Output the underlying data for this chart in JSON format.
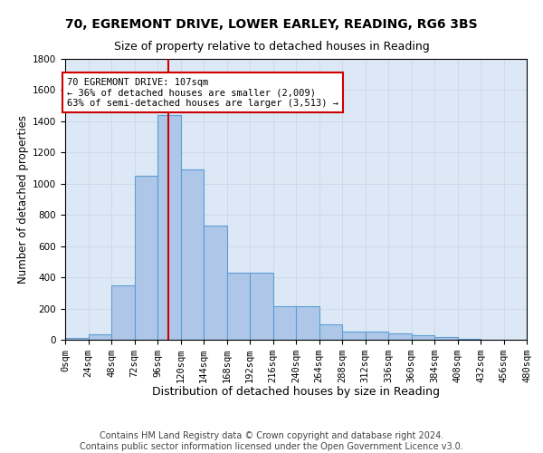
{
  "title1": "70, EGREMONT DRIVE, LOWER EARLEY, READING, RG6 3BS",
  "title2": "Size of property relative to detached houses in Reading",
  "xlabel": "Distribution of detached houses by size in Reading",
  "ylabel": "Number of detached properties",
  "footer1": "Contains HM Land Registry data © Crown copyright and database right 2024.",
  "footer2": "Contains public sector information licensed under the Open Government Licence v3.0.",
  "annotation_title": "70 EGREMONT DRIVE: 107sqm",
  "annotation_line1": "← 36% of detached houses are smaller (2,009)",
  "annotation_line2": "63% of semi-detached houses are larger (3,513) →",
  "property_size": 107,
  "bin_width": 24,
  "bin_starts": [
    0,
    24,
    48,
    72,
    96,
    120,
    144,
    168,
    192,
    216,
    240,
    264,
    288,
    312,
    336,
    360,
    384,
    408,
    432,
    456
  ],
  "bar_heights": [
    10,
    35,
    350,
    1050,
    1440,
    1090,
    730,
    430,
    430,
    215,
    215,
    100,
    50,
    50,
    40,
    30,
    20,
    5,
    2,
    2
  ],
  "bar_color": "#aec6e8",
  "bar_edge_color": "#5a9fd4",
  "vline_color": "#cc0000",
  "vline_x": 107,
  "annotation_box_color": "#cc0000",
  "background_color": "#ffffff",
  "grid_color": "#d0d8e8",
  "axes_bg_color": "#dce8f5",
  "ylim": [
    0,
    1800
  ],
  "yticks": [
    0,
    200,
    400,
    600,
    800,
    1000,
    1200,
    1400,
    1600,
    1800
  ],
  "xtick_labels": [
    "0sqm",
    "24sqm",
    "48sqm",
    "72sqm",
    "96sqm",
    "120sqm",
    "144sqm",
    "168sqm",
    "192sqm",
    "216sqm",
    "240sqm",
    "264sqm",
    "288sqm",
    "312sqm",
    "336sqm",
    "360sqm",
    "384sqm",
    "408sqm",
    "432sqm",
    "456sqm",
    "480sqm"
  ],
  "title1_fontsize": 10,
  "title2_fontsize": 9,
  "xlabel_fontsize": 9,
  "ylabel_fontsize": 8.5,
  "tick_fontsize": 7.5,
  "footer_fontsize": 7,
  "ann_fontsize": 7.5
}
